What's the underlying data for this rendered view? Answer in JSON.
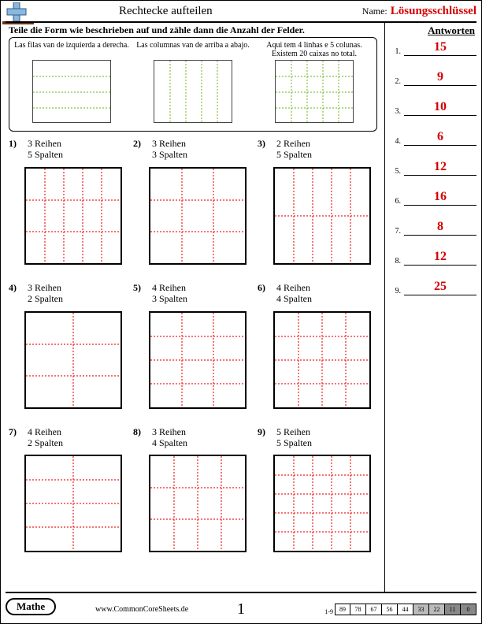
{
  "colors": {
    "red": "#d40000",
    "example_line": "#88c040",
    "problem_line": "#f02020",
    "shade1": "#bbbbbb",
    "shade2": "#888888"
  },
  "header": {
    "title": "Rechtecke aufteilen",
    "name_label": "Name:",
    "answer_key": "Lösungsschlüssel"
  },
  "instruction": "Teile die Form wie beschrieben auf und zähle dann die Anzahl der Felder.",
  "answers_header": "Antworten",
  "examples": [
    {
      "label": "Las filas van de izquierda a derecha.",
      "rows": 4,
      "cols": 1
    },
    {
      "label": "Las columnas van de arriba a abajo.",
      "rows": 1,
      "cols": 5
    },
    {
      "label": "Aqui tem 4 linhas e 5 colunas. Existem 20 caixas no total.",
      "rows": 4,
      "cols": 5
    }
  ],
  "row_word": "Reihen",
  "col_word": "Spalten",
  "problems": [
    {
      "n": 1,
      "rows": 3,
      "cols": 5
    },
    {
      "n": 2,
      "rows": 3,
      "cols": 3
    },
    {
      "n": 3,
      "rows": 2,
      "cols": 5
    },
    {
      "n": 4,
      "rows": 3,
      "cols": 2
    },
    {
      "n": 5,
      "rows": 4,
      "cols": 3
    },
    {
      "n": 6,
      "rows": 4,
      "cols": 4
    },
    {
      "n": 7,
      "rows": 4,
      "cols": 2
    },
    {
      "n": 8,
      "rows": 3,
      "cols": 4
    },
    {
      "n": 9,
      "rows": 5,
      "cols": 5
    }
  ],
  "answers": [
    {
      "n": 1,
      "v": 15
    },
    {
      "n": 2,
      "v": 9
    },
    {
      "n": 3,
      "v": 10
    },
    {
      "n": 4,
      "v": 6
    },
    {
      "n": 5,
      "v": 12
    },
    {
      "n": 6,
      "v": 16
    },
    {
      "n": 7,
      "v": 8
    },
    {
      "n": 8,
      "v": 12
    },
    {
      "n": 9,
      "v": 25
    }
  ],
  "footer": {
    "subject": "Mathe",
    "site": "www.CommonCoreSheets.de",
    "page": "1",
    "score_label": "1-9",
    "scores": [
      "89",
      "78",
      "67",
      "56",
      "44",
      "33",
      "22",
      "11",
      "0"
    ],
    "shade_count": 4
  }
}
